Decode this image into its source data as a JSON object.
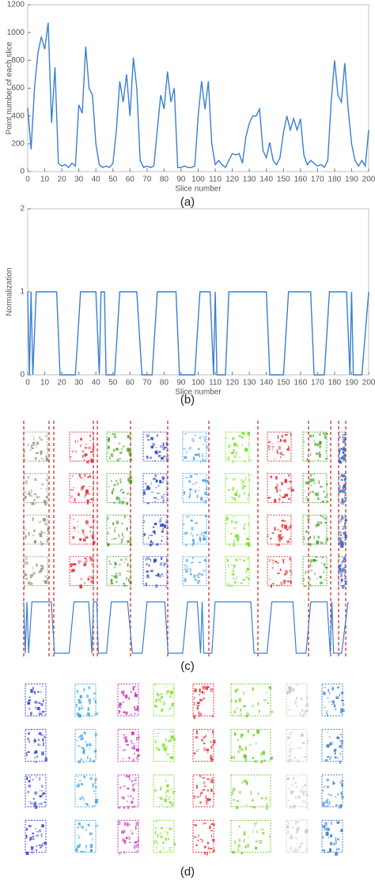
{
  "chart_data": [
    {
      "type": "line",
      "xlabel": "Slice number",
      "ylabel": "Point number of each slice",
      "x": [
        0,
        2,
        4,
        6,
        8,
        10,
        12,
        14,
        16,
        18,
        20,
        22,
        24,
        26,
        28,
        30,
        32,
        34,
        36,
        38,
        40,
        42,
        44,
        46,
        48,
        50,
        52,
        54,
        56,
        58,
        60,
        62,
        64,
        66,
        68,
        70,
        72,
        74,
        76,
        78,
        80,
        82,
        84,
        86,
        88,
        90,
        92,
        94,
        96,
        98,
        100,
        102,
        104,
        106,
        108,
        110,
        112,
        114,
        116,
        118,
        120,
        122,
        124,
        126,
        128,
        130,
        132,
        134,
        136,
        138,
        140,
        142,
        144,
        146,
        148,
        150,
        152,
        154,
        156,
        158,
        160,
        162,
        164,
        166,
        168,
        170,
        172,
        174,
        176,
        178,
        180,
        182,
        184,
        186,
        188,
        190,
        192,
        194,
        196,
        198,
        200
      ],
      "series": [
        {
          "name": "Point number",
          "color": "#3a7fd0",
          "values": [
            460,
            160,
            600,
            850,
            970,
            880,
            1070,
            350,
            750,
            60,
            40,
            50,
            30,
            60,
            40,
            480,
            420,
            900,
            600,
            550,
            200,
            50,
            30,
            40,
            30,
            60,
            300,
            650,
            500,
            700,
            400,
            820,
            600,
            80,
            30,
            40,
            30,
            40,
            300,
            550,
            450,
            720,
            500,
            600,
            30,
            30,
            40,
            30,
            30,
            40,
            400,
            650,
            450,
            650,
            200,
            50,
            80,
            50,
            30,
            80,
            130,
            120,
            130,
            60,
            250,
            350,
            400,
            400,
            450,
            150,
            100,
            210,
            80,
            50,
            100,
            280,
            400,
            300,
            380,
            300,
            380,
            120,
            50,
            80,
            60,
            40,
            50,
            30,
            80,
            500,
            800,
            550,
            500,
            780,
            450,
            200,
            80,
            40,
            80,
            40,
            300
          ]
        }
      ],
      "xlim": [
        0,
        200
      ],
      "xticks": [
        0,
        10,
        20,
        30,
        40,
        50,
        60,
        70,
        80,
        90,
        100,
        110,
        120,
        130,
        140,
        150,
        160,
        170,
        180,
        190,
        200
      ],
      "ylim": [
        0,
        1200
      ],
      "yticks": [
        0,
        200,
        400,
        600,
        800,
        1000,
        1200
      ]
    },
    {
      "type": "line",
      "xlabel": "Slice number",
      "ylabel": "Normalization",
      "x": [
        0,
        1,
        2,
        3,
        5,
        17,
        19,
        28,
        31,
        40,
        42,
        43,
        45,
        46,
        51,
        54,
        64,
        67,
        73,
        76,
        87,
        89,
        98,
        101,
        107,
        109,
        110,
        111,
        116,
        118,
        140,
        142,
        150,
        153,
        166,
        168,
        174,
        177,
        187,
        189,
        190,
        191,
        196,
        200
      ],
      "series": [
        {
          "name": "Normalization",
          "color": "#3a7fd0",
          "values": [
            1,
            0,
            1,
            0,
            1,
            1,
            0,
            0,
            1,
            1,
            0,
            1,
            1,
            0,
            0,
            1,
            1,
            0,
            0,
            1,
            1,
            0,
            0,
            1,
            1,
            0,
            1,
            0,
            0,
            1,
            1,
            0,
            0,
            1,
            1,
            0,
            0,
            1,
            1,
            0,
            1,
            0,
            0,
            1
          ]
        }
      ],
      "xlim": [
        0,
        200
      ],
      "xticks": [
        0,
        10,
        20,
        30,
        40,
        50,
        60,
        70,
        80,
        90,
        100,
        110,
        120,
        130,
        140,
        150,
        160,
        170,
        180,
        190,
        200
      ],
      "ylim": [
        0,
        2
      ],
      "yticks": [
        0,
        1,
        2
      ]
    }
  ],
  "panel_labels": [
    "(a)",
    "(b)",
    "(c)",
    "(d)"
  ]
}
